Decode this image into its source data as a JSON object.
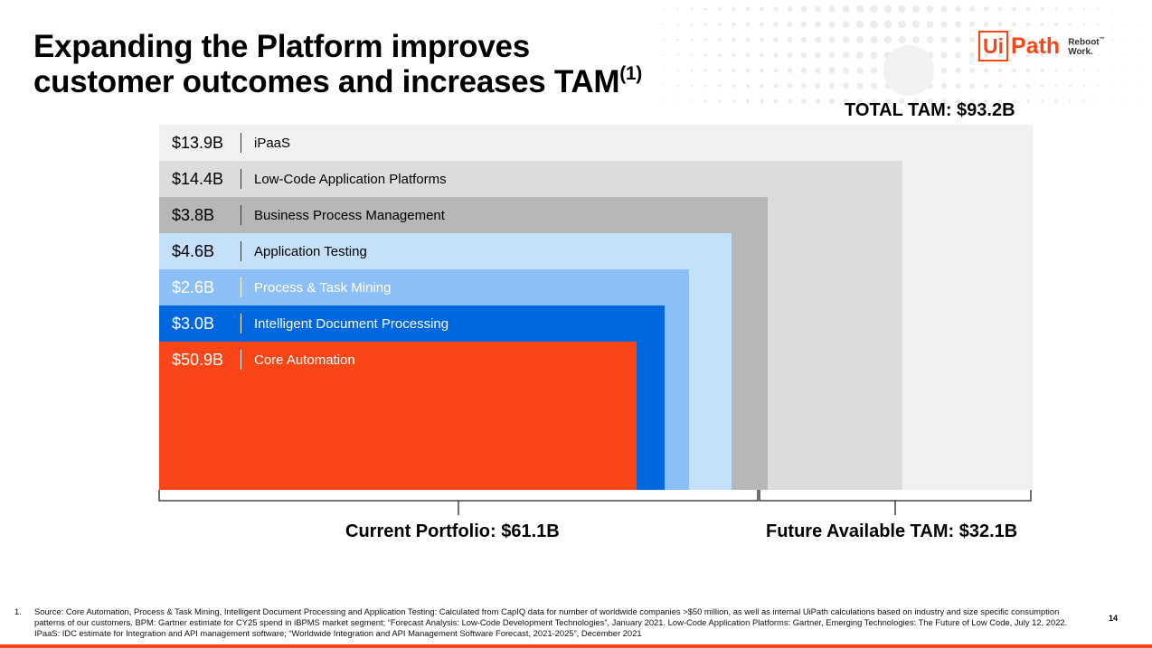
{
  "slide": {
    "title_line1": "Expanding the Platform improves",
    "title_line2": "customer outcomes and increases TAM",
    "title_superscript": "(1)",
    "total_tam": "TOTAL TAM: $93.2B",
    "current_portfolio": "Current Portfolio: $61.1B",
    "future_tam": "Future Available TAM: $32.1B",
    "page_number": "14"
  },
  "logo": {
    "ui": "Ui",
    "path": "Path",
    "tagline_1": "Reboot",
    "tagline_2": "Work.",
    "tm": "™",
    "color": "#fa4616"
  },
  "chart_data": {
    "type": "nested-area",
    "total": 93.2,
    "units": "$B",
    "segments": [
      {
        "value_label": "$13.9B",
        "name": "iPaaS",
        "value": 13.9,
        "color": "#f1f1f1",
        "text_color": "#000000",
        "group": "future"
      },
      {
        "value_label": "$14.4B",
        "name": "Low-Code Application Platforms",
        "value": 14.4,
        "color": "#dcdcdc",
        "text_color": "#000000",
        "group": "future"
      },
      {
        "value_label": "$3.8B",
        "name": "Business Process Management",
        "value": 3.8,
        "color": "#b7b7b7",
        "text_color": "#000000",
        "group": "future"
      },
      {
        "value_label": "$4.6B",
        "name": "Application Testing",
        "value": 4.6,
        "color": "#c5e0fb",
        "text_color": "#000000",
        "group": "current"
      },
      {
        "value_label": "$2.6B",
        "name": "Process & Task Mining",
        "value": 2.6,
        "color": "#8dbff7",
        "text_color": "#ffffff",
        "group": "current"
      },
      {
        "value_label": "$3.0B",
        "name": "Intelligent Document Processing",
        "value": 3.0,
        "color": "#0067df",
        "text_color": "#ffffff",
        "group": "current"
      },
      {
        "value_label": "$50.9B",
        "name": "Core Automation",
        "value": 50.9,
        "color": "#fa4616",
        "text_color": "#ffffff",
        "group": "current"
      }
    ]
  },
  "footnote": {
    "number": "1.",
    "text": "Source: Core Automation, Process & Task Mining, Intelligent Document Processing and Application Testing: Calculated from CapIQ data for number of worldwide companies >$50 million, as well as internal UiPath calculations based on industry and size specific consumption patterns of our customers. BPM: Gartner estimate for CY25 spend in iBPMS market segment; “Forecast Analysis: Low-Code Development Technologies”, January 2021. Low-Code Application Platforms: Gartner, Emerging Technologies: The Future of Low Code, July 12, 2022. IPaaS: IDC estimate for Integration and API management software;  “Worldwide Integration and API Management Software Forecast, 2021-2025”, December 2021"
  }
}
